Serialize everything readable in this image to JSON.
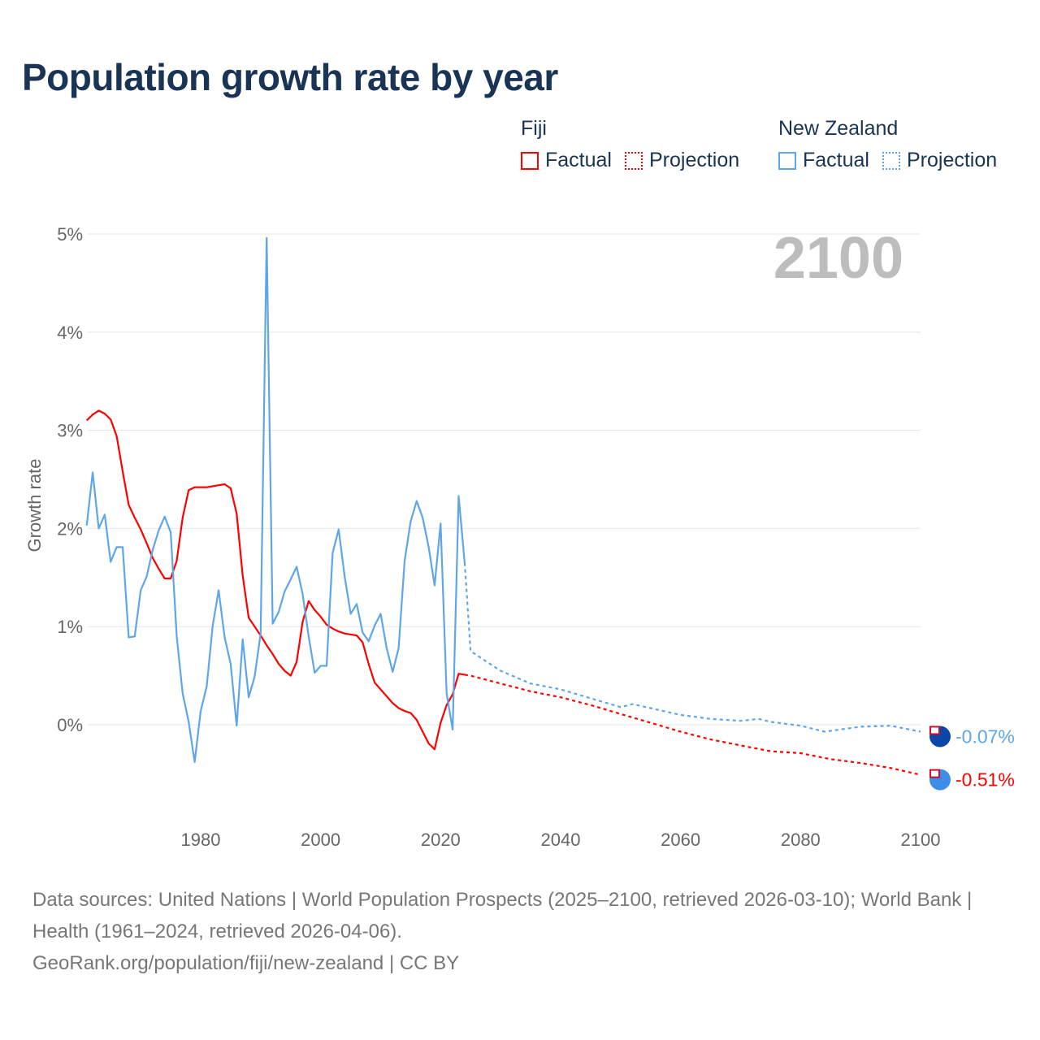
{
  "title": "Population growth rate by year",
  "legend": {
    "groups": [
      {
        "name": "Fiji",
        "color": "#ff0000",
        "items": [
          "Factual",
          "Projection"
        ]
      },
      {
        "name": "New Zealand",
        "color": "#5ea6e8",
        "items": [
          "Factual",
          "Projection"
        ]
      }
    ]
  },
  "year_label": "2100",
  "chart_data": {
    "type": "line",
    "title": "Population growth rate by year",
    "xlabel": "",
    "ylabel": "Growth rate",
    "xlim": [
      1961,
      2100
    ],
    "ylim": [
      -0.9,
      5.0
    ],
    "x_ticks": [
      1980,
      2000,
      2020,
      2040,
      2060,
      2080,
      2100
    ],
    "x_tick_labels": [
      "1980",
      "2000",
      "2020",
      "2040",
      "2060",
      "2080",
      "2100"
    ],
    "y_ticks": [
      0,
      1,
      2,
      3,
      4,
      5
    ],
    "y_tick_labels": [
      "0%",
      "1%",
      "2%",
      "3%",
      "4%",
      "5%"
    ],
    "grid": true,
    "legend_position": "top-right",
    "series": [
      {
        "name": "Fiji Factual",
        "color": "#ff0000",
        "style": "solid",
        "x_start": 1961,
        "values": [
          3.1,
          3.16,
          3.2,
          3.17,
          3.11,
          2.94,
          2.58,
          2.24,
          2.11,
          1.99,
          1.85,
          1.7,
          1.59,
          1.49,
          1.49,
          1.67,
          2.11,
          2.39,
          2.42,
          2.42,
          2.42,
          2.43,
          2.44,
          2.45,
          2.41,
          2.15,
          1.52,
          1.09,
          1.0,
          0.91,
          0.81,
          0.72,
          0.62,
          0.55,
          0.5,
          0.64,
          1.05,
          1.26,
          1.17,
          1.1,
          1.02,
          0.98,
          0.95,
          0.93,
          0.92,
          0.91,
          0.84,
          0.62,
          0.43,
          0.36,
          0.29,
          0.22,
          0.17,
          0.14,
          0.12,
          0.05,
          -0.07,
          -0.19,
          -0.25,
          0.02,
          0.2,
          0.31,
          0.52,
          0.51
        ]
      },
      {
        "name": "Fiji Projection",
        "color": "#ff0000",
        "style": "dotted",
        "points": [
          [
            2024,
            0.51
          ],
          [
            2025,
            0.5
          ],
          [
            2030,
            0.42
          ],
          [
            2035,
            0.34
          ],
          [
            2040,
            0.28
          ],
          [
            2045,
            0.2
          ],
          [
            2050,
            0.11
          ],
          [
            2055,
            0.02
          ],
          [
            2060,
            -0.07
          ],
          [
            2065,
            -0.15
          ],
          [
            2070,
            -0.21
          ],
          [
            2075,
            -0.27
          ],
          [
            2080,
            -0.29
          ],
          [
            2085,
            -0.35
          ],
          [
            2090,
            -0.39
          ],
          [
            2095,
            -0.44
          ],
          [
            2100,
            -0.51
          ]
        ],
        "end_label": "-0.51%"
      },
      {
        "name": "New Zealand Factual",
        "color": "#5ea6e8",
        "style": "solid",
        "x_start": 1961,
        "values": [
          2.03,
          2.57,
          2.0,
          2.14,
          1.66,
          1.81,
          1.81,
          0.89,
          0.9,
          1.37,
          1.51,
          1.78,
          1.98,
          2.12,
          1.96,
          0.9,
          0.32,
          0.03,
          -0.38,
          0.14,
          0.39,
          1.01,
          1.37,
          0.89,
          0.62,
          -0.01,
          0.87,
          0.28,
          0.49,
          0.93,
          4.96,
          1.03,
          1.15,
          1.36,
          1.48,
          1.61,
          1.33,
          0.9,
          0.53,
          0.6,
          0.6,
          1.75,
          1.99,
          1.51,
          1.13,
          1.23,
          0.94,
          0.85,
          1.01,
          1.13,
          0.78,
          0.54,
          0.78,
          1.67,
          2.07,
          2.28,
          2.11,
          1.81,
          1.42,
          2.05,
          0.32,
          -0.05,
          2.33,
          1.65
        ]
      },
      {
        "name": "New Zealand Projection",
        "color": "#5ea6e8",
        "style": "dotted",
        "points": [
          [
            2024,
            1.65
          ],
          [
            2025,
            0.75
          ],
          [
            2030,
            0.55
          ],
          [
            2035,
            0.42
          ],
          [
            2040,
            0.36
          ],
          [
            2045,
            0.27
          ],
          [
            2050,
            0.18
          ],
          [
            2052,
            0.21
          ],
          [
            2055,
            0.17
          ],
          [
            2060,
            0.1
          ],
          [
            2065,
            0.06
          ],
          [
            2070,
            0.04
          ],
          [
            2073,
            0.06
          ],
          [
            2075,
            0.03
          ],
          [
            2080,
            -0.01
          ],
          [
            2084,
            -0.07
          ],
          [
            2090,
            -0.02
          ],
          [
            2095,
            -0.01
          ],
          [
            2100,
            -0.07
          ]
        ],
        "end_label": "-0.07%"
      }
    ]
  },
  "footer": {
    "sources": "Data sources: United Nations | World Population Prospects (2025–2100, retrieved 2026-03-10); World Bank | Health (1961–2024, retrieved 2026-04-06).",
    "link": "GeoRank.org/population/fiji/new-zealand | CC BY"
  }
}
